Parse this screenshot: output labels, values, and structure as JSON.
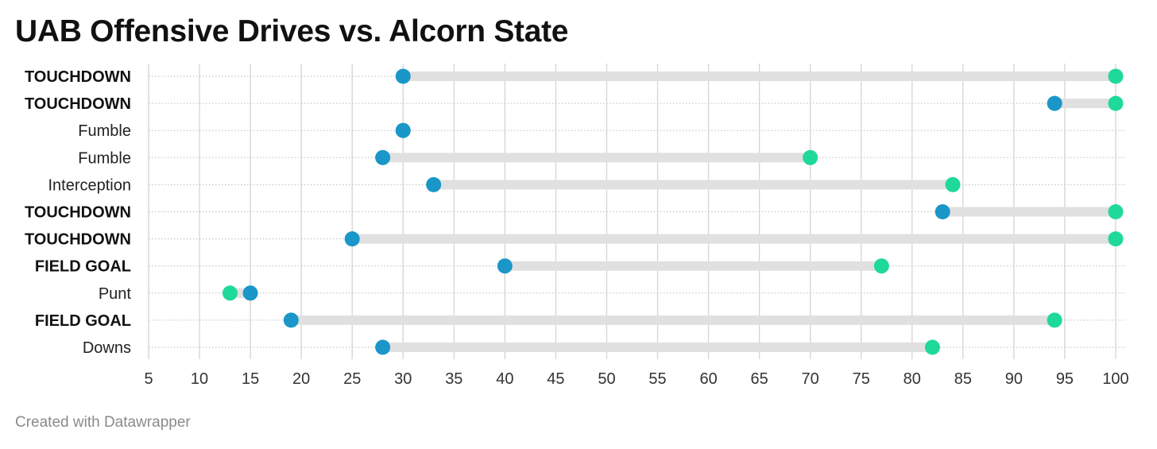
{
  "chart_data": {
    "type": "dot-range",
    "title": "UAB Offensive Drives vs. Alcorn State",
    "footer": "Created with Datawrapper",
    "x_ticks": [
      5,
      10,
      15,
      20,
      25,
      30,
      35,
      40,
      45,
      50,
      55,
      60,
      65,
      70,
      75,
      80,
      85,
      90,
      95,
      100
    ],
    "xlim": [
      5,
      100
    ],
    "colors": {
      "start": "#1a96c8",
      "end": "#1fd99a",
      "range": "#e0e0e0"
    },
    "rows": [
      {
        "label": "TOUCHDOWN",
        "bold": true,
        "start": 30,
        "end": 100
      },
      {
        "label": "TOUCHDOWN",
        "bold": true,
        "start": 94,
        "end": 100
      },
      {
        "label": "Fumble",
        "bold": false,
        "start": 30,
        "end": 30
      },
      {
        "label": "Fumble",
        "bold": false,
        "start": 28,
        "end": 70
      },
      {
        "label": "Interception",
        "bold": false,
        "start": 33,
        "end": 84
      },
      {
        "label": "TOUCHDOWN",
        "bold": true,
        "start": 83,
        "end": 100
      },
      {
        "label": "TOUCHDOWN",
        "bold": true,
        "start": 25,
        "end": 100
      },
      {
        "label": "FIELD GOAL",
        "bold": true,
        "start": 40,
        "end": 77
      },
      {
        "label": "Punt",
        "bold": false,
        "start": 15,
        "end": 13
      },
      {
        "label": "FIELD GOAL",
        "bold": true,
        "start": 19,
        "end": 94
      },
      {
        "label": "Downs",
        "bold": false,
        "start": 28,
        "end": 82
      }
    ]
  }
}
